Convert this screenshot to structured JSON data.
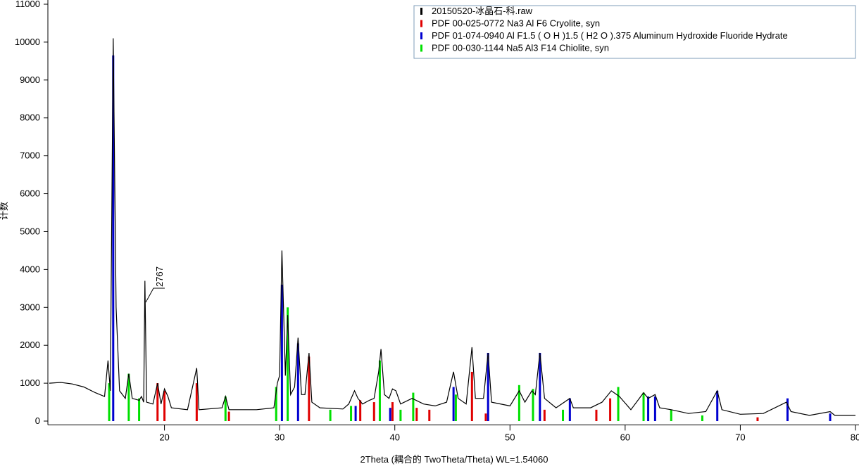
{
  "chart_data": {
    "type": "line",
    "xlabel": "2Theta (耦合的 TwoTheta/Theta) WL=1.54060",
    "ylabel": "计数",
    "annotation": "2767",
    "xlim": [
      10,
      80
    ],
    "ylim": [
      -100,
      11100
    ],
    "xticks": [
      20,
      30,
      40,
      50,
      60,
      70,
      80
    ],
    "yticks": [
      0,
      1000,
      2000,
      3000,
      4000,
      5000,
      6000,
      7000,
      8000,
      9000,
      10000,
      11000
    ],
    "series": [
      {
        "name": "20150520-冰晶石-科.raw",
        "color": "#000000",
        "type": "line",
        "x": [
          10,
          11,
          12,
          13,
          14,
          14.8,
          15.1,
          15.3,
          15.55,
          15.8,
          16.1,
          16.6,
          16.9,
          17.2,
          17.8,
          18.0,
          18.2,
          18.3,
          18.45,
          19.0,
          19.4,
          19.7,
          20.0,
          20.3,
          20.6,
          22.0,
          22.8,
          23.0,
          25.0,
          25.3,
          25.6,
          28.0,
          29.5,
          29.8,
          30.0,
          30.2,
          30.5,
          30.7,
          30.95,
          31.3,
          31.6,
          31.9,
          32.2,
          32.55,
          32.8,
          33.5,
          35.5,
          36.0,
          36.5,
          36.8,
          37.2,
          37.8,
          38.2,
          38.6,
          38.8,
          39.1,
          39.5,
          39.8,
          40.1,
          40.5,
          41.5,
          42.5,
          43.5,
          44.5,
          45.1,
          45.5,
          46.2,
          46.7,
          47.0,
          47.7,
          48.1,
          48.4,
          50.0,
          50.8,
          51.3,
          51.9,
          52.2,
          52.6,
          53.0,
          54.0,
          55.2,
          55.5,
          57.0,
          58.0,
          58.8,
          59.5,
          60.5,
          61.6,
          62.0,
          62.6,
          63.0,
          64.0,
          65.5,
          67.0,
          68.0,
          68.4,
          70.0,
          72.0,
          74.0,
          74.4,
          76.0,
          77.8,
          78.2,
          80.0
        ],
        "values": [
          1000,
          1020,
          980,
          900,
          750,
          650,
          1600,
          800,
          10100,
          3000,
          800,
          600,
          1250,
          600,
          550,
          650,
          500,
          3700,
          500,
          450,
          1000,
          450,
          850,
          650,
          350,
          300,
          1400,
          300,
          350,
          650,
          300,
          300,
          350,
          1000,
          1200,
          4500,
          1200,
          2800,
          700,
          900,
          2200,
          700,
          700,
          1800,
          500,
          350,
          320,
          450,
          800,
          600,
          450,
          550,
          600,
          1300,
          1900,
          700,
          600,
          850,
          800,
          450,
          600,
          450,
          400,
          500,
          1300,
          600,
          450,
          1950,
          600,
          600,
          1800,
          500,
          400,
          800,
          500,
          800,
          700,
          1800,
          600,
          350,
          600,
          350,
          350,
          500,
          800,
          650,
          300,
          750,
          600,
          700,
          350,
          300,
          200,
          250,
          800,
          300,
          180,
          200,
          500,
          250,
          150,
          250,
          150,
          150
        ]
      },
      {
        "name": "PDF 00-025-0772 Na3 Al F6 Cryolite, syn",
        "color": "#e00000",
        "type": "stick",
        "x": [
          19.4,
          20.0,
          22.8,
          25.6,
          32.55,
          37.0,
          38.2,
          39.8,
          41.9,
          43.0,
          46.7,
          47.9,
          53.0,
          57.5,
          58.7,
          71.5
        ],
        "values": [
          1000,
          800,
          1000,
          250,
          1700,
          550,
          500,
          500,
          350,
          300,
          1300,
          200,
          300,
          300,
          600,
          100
        ]
      },
      {
        "name": "PDF 01-074-0940 Al F1.5 ( O H )1.5 ( H2 O ).375 Aluminum Hydroxide Fluoride Hydrate",
        "color": "#0000d0",
        "type": "stick",
        "x": [
          15.55,
          30.2,
          31.6,
          36.6,
          39.6,
          45.1,
          48.1,
          52.6,
          55.2,
          62.0,
          62.6,
          68.0,
          74.1,
          77.8
        ],
        "values": [
          9650,
          3600,
          2050,
          400,
          350,
          900,
          1800,
          1800,
          600,
          650,
          650,
          800,
          600,
          200
        ]
      },
      {
        "name": "PDF 00-030-1144 Na5 Al3 F14 Chiolite, syn",
        "color": "#00e000",
        "type": "stick",
        "x": [
          15.2,
          16.9,
          17.8,
          25.3,
          29.7,
          30.7,
          34.4,
          36.2,
          38.7,
          40.5,
          41.6,
          45.3,
          50.8,
          52.0,
          54.6,
          59.4,
          61.6,
          64.0,
          66.7
        ],
        "values": [
          1000,
          1250,
          600,
          650,
          900,
          3000,
          300,
          400,
          1600,
          300,
          750,
          700,
          950,
          850,
          300,
          900,
          750,
          300,
          150
        ]
      }
    ]
  }
}
